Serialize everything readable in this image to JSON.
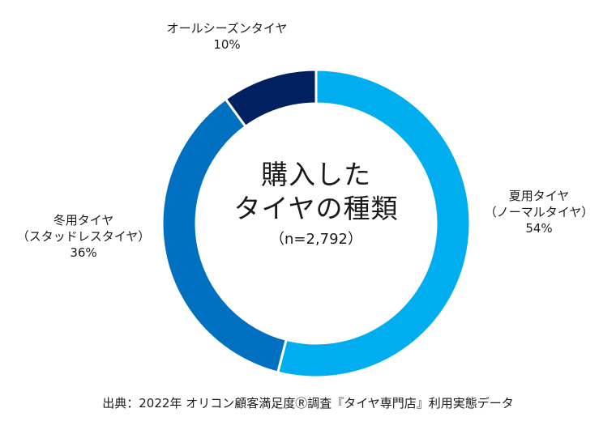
{
  "chart_data": {
    "type": "donut",
    "title_lines": [
      "購入した",
      "タイヤの種類"
    ],
    "sample": "（n=2,792）",
    "slices": [
      {
        "name_lines": [
          "夏用タイヤ",
          "（ノーマルタイヤ）"
        ],
        "value": 54,
        "value_label": "54%",
        "color": "#00AEEF"
      },
      {
        "name_lines": [
          "冬用タイヤ",
          "（スタッドレスタイヤ）"
        ],
        "value": 36,
        "value_label": "36%",
        "color": "#0070C0"
      },
      {
        "name_lines": [
          "オールシーズンタイヤ"
        ],
        "value": 10,
        "value_label": "10%",
        "color": "#002060"
      }
    ],
    "start_angle": "12 o'clock",
    "direction": "clockwise"
  },
  "source": "出典：2022年 オリコン顧客満足度Ⓡ調査『タイヤ専門店』利用実態データ"
}
